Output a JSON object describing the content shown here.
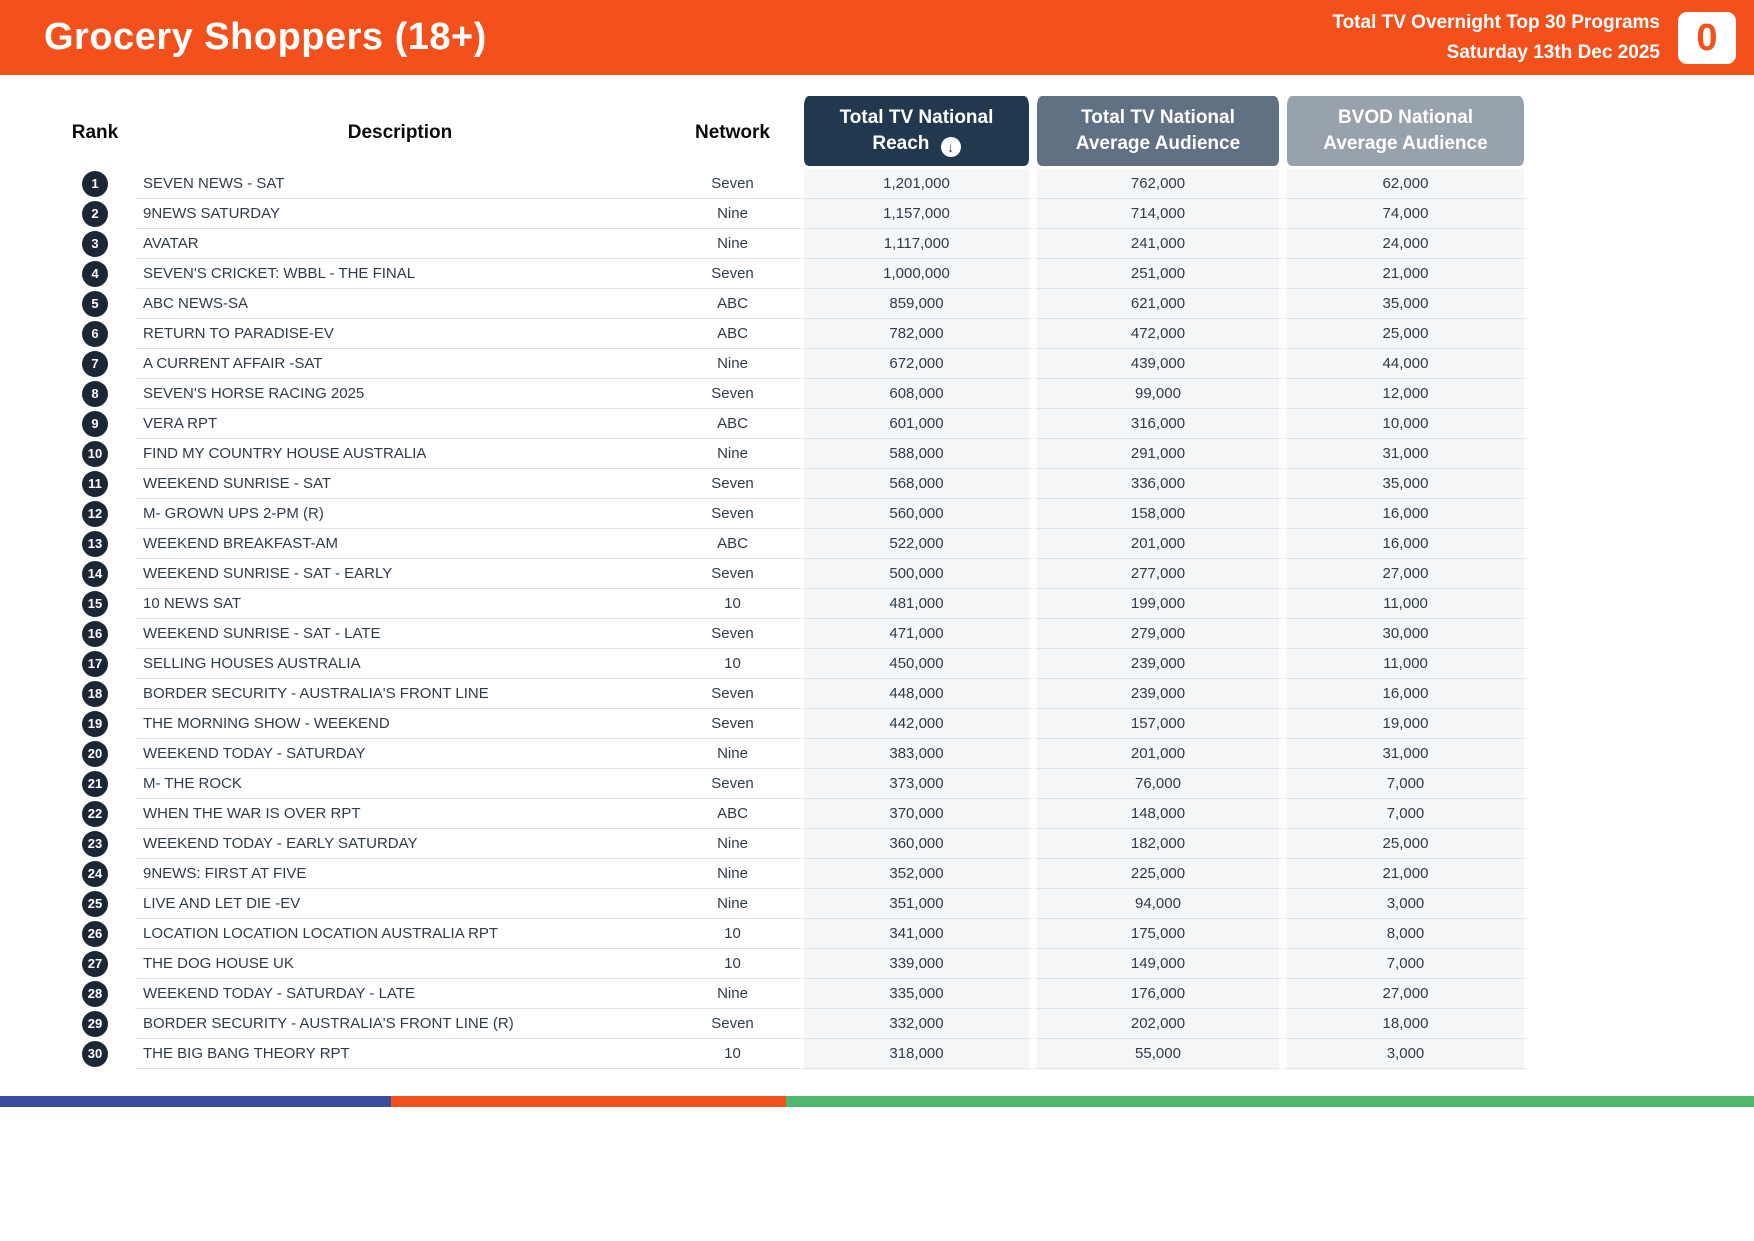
{
  "header": {
    "title": "Grocery Shoppers (18+)",
    "subtitle_line1": "Total TV Overnight Top 30 Programs",
    "subtitle_line2": "Saturday 13th Dec 2025",
    "logo_glyph": "0"
  },
  "icons": {
    "sort_desc": "↓"
  },
  "colors": {
    "banner_orange": "#F4501C",
    "header_dark_navy": "#22384E",
    "header_mid_gray_blue": "#5F7183",
    "header_light_gray": "#98A2AC",
    "rank_badge": "#1B2735",
    "footer_indigo": "#3C4C9F",
    "footer_orange": "#F4501C",
    "footer_green": "#50B86C"
  },
  "table": {
    "columns": {
      "rank": "Rank",
      "description": "Description",
      "network": "Network",
      "reach": "Total TV National Reach",
      "avg": "Total TV National Average Audience",
      "bvod": "BVOD National Average Audience"
    },
    "rows": [
      {
        "rank": "1",
        "description": "SEVEN NEWS - SAT",
        "network": "Seven",
        "reach": "1,201,000",
        "avg": "762,000",
        "bvod": "62,000"
      },
      {
        "rank": "2",
        "description": "9NEWS SATURDAY",
        "network": "Nine",
        "reach": "1,157,000",
        "avg": "714,000",
        "bvod": "74,000"
      },
      {
        "rank": "3",
        "description": "AVATAR",
        "network": "Nine",
        "reach": "1,117,000",
        "avg": "241,000",
        "bvod": "24,000"
      },
      {
        "rank": "4",
        "description": "SEVEN'S CRICKET: WBBL - THE FINAL",
        "network": "Seven",
        "reach": "1,000,000",
        "avg": "251,000",
        "bvod": "21,000"
      },
      {
        "rank": "5",
        "description": "ABC NEWS-SA",
        "network": "ABC",
        "reach": "859,000",
        "avg": "621,000",
        "bvod": "35,000"
      },
      {
        "rank": "6",
        "description": "RETURN TO PARADISE-EV",
        "network": "ABC",
        "reach": "782,000",
        "avg": "472,000",
        "bvod": "25,000"
      },
      {
        "rank": "7",
        "description": "A CURRENT AFFAIR -SAT",
        "network": "Nine",
        "reach": "672,000",
        "avg": "439,000",
        "bvod": "44,000"
      },
      {
        "rank": "8",
        "description": "SEVEN'S HORSE RACING 2025",
        "network": "Seven",
        "reach": "608,000",
        "avg": "99,000",
        "bvod": "12,000"
      },
      {
        "rank": "9",
        "description": "VERA RPT",
        "network": "ABC",
        "reach": "601,000",
        "avg": "316,000",
        "bvod": "10,000"
      },
      {
        "rank": "10",
        "description": "FIND MY COUNTRY HOUSE AUSTRALIA",
        "network": "Nine",
        "reach": "588,000",
        "avg": "291,000",
        "bvod": "31,000"
      },
      {
        "rank": "11",
        "description": "WEEKEND SUNRISE - SAT",
        "network": "Seven",
        "reach": "568,000",
        "avg": "336,000",
        "bvod": "35,000"
      },
      {
        "rank": "12",
        "description": "M- GROWN UPS 2-PM (R)",
        "network": "Seven",
        "reach": "560,000",
        "avg": "158,000",
        "bvod": "16,000"
      },
      {
        "rank": "13",
        "description": "WEEKEND BREAKFAST-AM",
        "network": "ABC",
        "reach": "522,000",
        "avg": "201,000",
        "bvod": "16,000"
      },
      {
        "rank": "14",
        "description": "WEEKEND SUNRISE - SAT - EARLY",
        "network": "Seven",
        "reach": "500,000",
        "avg": "277,000",
        "bvod": "27,000"
      },
      {
        "rank": "15",
        "description": "10 NEWS SAT",
        "network": "10",
        "reach": "481,000",
        "avg": "199,000",
        "bvod": "11,000"
      },
      {
        "rank": "16",
        "description": "WEEKEND SUNRISE - SAT - LATE",
        "network": "Seven",
        "reach": "471,000",
        "avg": "279,000",
        "bvod": "30,000"
      },
      {
        "rank": "17",
        "description": "SELLING HOUSES AUSTRALIA",
        "network": "10",
        "reach": "450,000",
        "avg": "239,000",
        "bvod": "11,000"
      },
      {
        "rank": "18",
        "description": "BORDER SECURITY - AUSTRALIA'S FRONT LINE",
        "network": "Seven",
        "reach": "448,000",
        "avg": "239,000",
        "bvod": "16,000"
      },
      {
        "rank": "19",
        "description": "THE MORNING SHOW - WEEKEND",
        "network": "Seven",
        "reach": "442,000",
        "avg": "157,000",
        "bvod": "19,000"
      },
      {
        "rank": "20",
        "description": "WEEKEND TODAY - SATURDAY",
        "network": "Nine",
        "reach": "383,000",
        "avg": "201,000",
        "bvod": "31,000"
      },
      {
        "rank": "21",
        "description": "M- THE ROCK",
        "network": "Seven",
        "reach": "373,000",
        "avg": "76,000",
        "bvod": "7,000"
      },
      {
        "rank": "22",
        "description": "WHEN THE WAR IS OVER RPT",
        "network": "ABC",
        "reach": "370,000",
        "avg": "148,000",
        "bvod": "7,000"
      },
      {
        "rank": "23",
        "description": "WEEKEND TODAY - EARLY SATURDAY",
        "network": "Nine",
        "reach": "360,000",
        "avg": "182,000",
        "bvod": "25,000"
      },
      {
        "rank": "24",
        "description": "9NEWS: FIRST AT FIVE",
        "network": "Nine",
        "reach": "352,000",
        "avg": "225,000",
        "bvod": "21,000"
      },
      {
        "rank": "25",
        "description": "LIVE AND LET DIE -EV",
        "network": "Nine",
        "reach": "351,000",
        "avg": "94,000",
        "bvod": "3,000"
      },
      {
        "rank": "26",
        "description": "LOCATION LOCATION LOCATION AUSTRALIA RPT",
        "network": "10",
        "reach": "341,000",
        "avg": "175,000",
        "bvod": "8,000"
      },
      {
        "rank": "27",
        "description": "THE DOG HOUSE UK",
        "network": "10",
        "reach": "339,000",
        "avg": "149,000",
        "bvod": "7,000"
      },
      {
        "rank": "28",
        "description": "WEEKEND TODAY - SATURDAY - LATE",
        "network": "Nine",
        "reach": "335,000",
        "avg": "176,000",
        "bvod": "27,000"
      },
      {
        "rank": "29",
        "description": "BORDER SECURITY - AUSTRALIA'S FRONT LINE (R)",
        "network": "Seven",
        "reach": "332,000",
        "avg": "202,000",
        "bvod": "18,000"
      },
      {
        "rank": "30",
        "description": "THE BIG BANG THEORY RPT",
        "network": "10",
        "reach": "318,000",
        "avg": "55,000",
        "bvod": "3,000"
      }
    ]
  }
}
